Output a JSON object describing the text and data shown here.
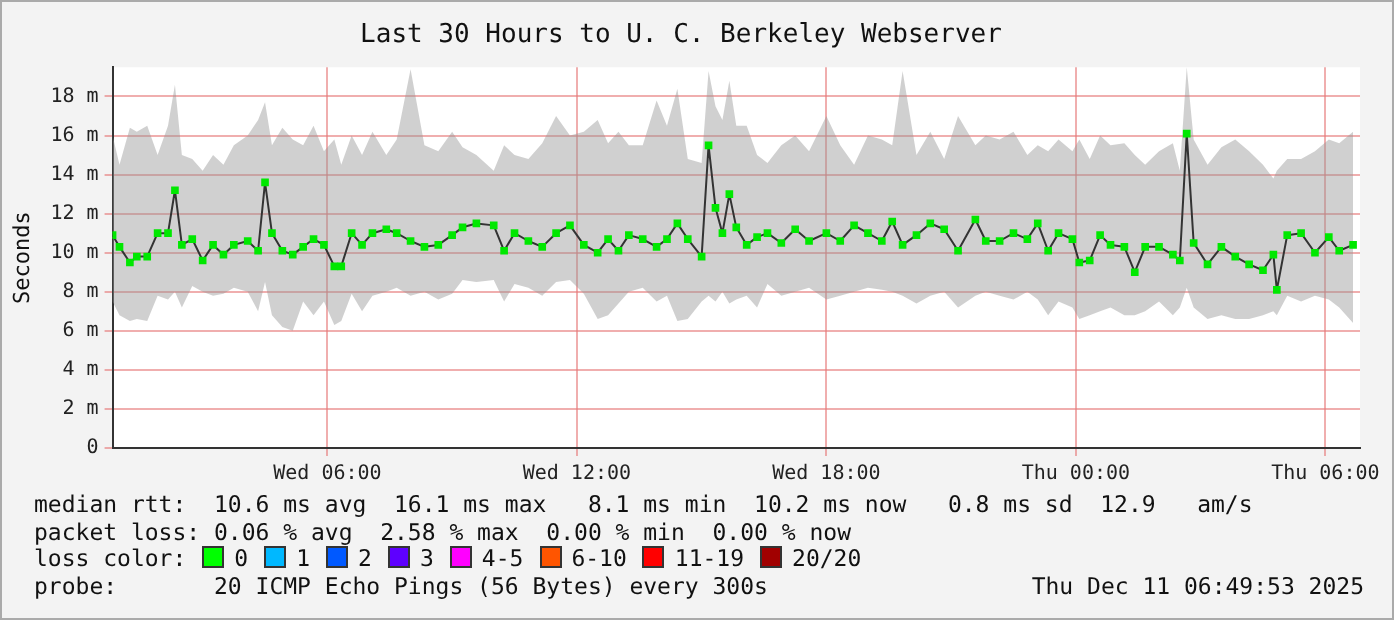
{
  "chart_data": {
    "type": "line",
    "title": "Last 30 Hours to U. C. Berkeley Webserver",
    "ylabel": "Seconds",
    "xlim": [
      "2025-12-10T00:50",
      "2025-12-11T06:50"
    ],
    "xticks": [
      {
        "value": "2025-12-10T06:00",
        "label": "Wed 06:00"
      },
      {
        "value": "2025-12-10T12:00",
        "label": "Wed 12:00"
      },
      {
        "value": "2025-12-10T18:00",
        "label": "Wed 18:00"
      },
      {
        "value": "2025-12-11T00:00",
        "label": "Thu 00:00"
      },
      {
        "value": "2025-12-11T06:00",
        "label": "Thu 06:00"
      }
    ],
    "ylim": [
      0,
      19.5
    ],
    "yticks": [
      0,
      {
        "value": 2,
        "label": "2 m"
      },
      {
        "value": 4,
        "label": "4 m"
      },
      {
        "value": 6,
        "label": "6 m"
      },
      {
        "value": 8,
        "label": "8 m"
      },
      {
        "value": 10,
        "label": "10 m"
      },
      {
        "value": 12,
        "label": "12 m"
      },
      {
        "value": 14,
        "label": "14 m"
      },
      {
        "value": 16,
        "label": "16 m"
      },
      {
        "value": 18,
        "label": "18 m"
      }
    ],
    "grid": true,
    "legend": false,
    "marker": "square",
    "line_style": "solid",
    "series": [
      {
        "color": "#00e800",
        "x": [
          "2025-12-10T00:50",
          "2025-12-10T01:00",
          "2025-12-10T01:15",
          "2025-12-10T01:25",
          "2025-12-10T01:40",
          "2025-12-10T01:55",
          "2025-12-10T02:10",
          "2025-12-10T02:20",
          "2025-12-10T02:30",
          "2025-12-10T02:45",
          "2025-12-10T03:00",
          "2025-12-10T03:15",
          "2025-12-10T03:30",
          "2025-12-10T03:45",
          "2025-12-10T04:05",
          "2025-12-10T04:20",
          "2025-12-10T04:30",
          "2025-12-10T04:40",
          "2025-12-10T04:55",
          "2025-12-10T05:10",
          "2025-12-10T05:25",
          "2025-12-10T05:40",
          "2025-12-10T05:55",
          "2025-12-10T06:10",
          "2025-12-10T06:20",
          "2025-12-10T06:35",
          "2025-12-10T06:50",
          "2025-12-10T07:05",
          "2025-12-10T07:25",
          "2025-12-10T07:40",
          "2025-12-10T08:00",
          "2025-12-10T08:20",
          "2025-12-10T08:40",
          "2025-12-10T09:00",
          "2025-12-10T09:15",
          "2025-12-10T09:35",
          "2025-12-10T10:00",
          "2025-12-10T10:15",
          "2025-12-10T10:30",
          "2025-12-10T10:50",
          "2025-12-10T11:10",
          "2025-12-10T11:30",
          "2025-12-10T11:50",
          "2025-12-10T12:10",
          "2025-12-10T12:30",
          "2025-12-10T12:45",
          "2025-12-10T13:00",
          "2025-12-10T13:15",
          "2025-12-10T13:35",
          "2025-12-10T13:55",
          "2025-12-10T14:10",
          "2025-12-10T14:25",
          "2025-12-10T14:40",
          "2025-12-10T15:00",
          "2025-12-10T15:10",
          "2025-12-10T15:20",
          "2025-12-10T15:30",
          "2025-12-10T15:40",
          "2025-12-10T15:50",
          "2025-12-10T16:05",
          "2025-12-10T16:20",
          "2025-12-10T16:35",
          "2025-12-10T16:55",
          "2025-12-10T17:15",
          "2025-12-10T17:35",
          "2025-12-10T18:00",
          "2025-12-10T18:20",
          "2025-12-10T18:40",
          "2025-12-10T19:00",
          "2025-12-10T19:20",
          "2025-12-10T19:35",
          "2025-12-10T19:50",
          "2025-12-10T20:10",
          "2025-12-10T20:30",
          "2025-12-10T20:50",
          "2025-12-10T21:10",
          "2025-12-10T21:35",
          "2025-12-10T21:50",
          "2025-12-10T22:10",
          "2025-12-10T22:30",
          "2025-12-10T22:50",
          "2025-12-10T23:05",
          "2025-12-10T23:20",
          "2025-12-10T23:35",
          "2025-12-10T23:55",
          "2025-12-11T00:05",
          "2025-12-11T00:20",
          "2025-12-11T00:35",
          "2025-12-11T00:50",
          "2025-12-11T01:10",
          "2025-12-11T01:25",
          "2025-12-11T01:40",
          "2025-12-11T02:00",
          "2025-12-11T02:20",
          "2025-12-11T02:30",
          "2025-12-11T02:40",
          "2025-12-11T02:50",
          "2025-12-11T03:10",
          "2025-12-11T03:30",
          "2025-12-11T03:50",
          "2025-12-11T04:10",
          "2025-12-11T04:30",
          "2025-12-11T04:45",
          "2025-12-11T04:50",
          "2025-12-11T05:05",
          "2025-12-11T05:25",
          "2025-12-11T05:45",
          "2025-12-11T06:05",
          "2025-12-11T06:20",
          "2025-12-11T06:40"
        ],
        "values": [
          10.9,
          10.3,
          9.5,
          9.8,
          9.8,
          11.0,
          11.0,
          13.2,
          10.4,
          10.7,
          9.6,
          10.4,
          9.9,
          10.4,
          10.6,
          10.1,
          13.6,
          11.0,
          10.1,
          9.9,
          10.3,
          10.7,
          10.4,
          9.3,
          9.3,
          11.0,
          10.4,
          11.0,
          11.2,
          11.0,
          10.6,
          10.3,
          10.4,
          10.9,
          11.3,
          11.5,
          11.4,
          10.1,
          11.0,
          10.6,
          10.3,
          11.0,
          11.4,
          10.4,
          10.0,
          10.7,
          10.1,
          10.9,
          10.7,
          10.3,
          10.7,
          11.5,
          10.7,
          9.8,
          15.5,
          12.3,
          11.0,
          13.0,
          11.3,
          10.4,
          10.8,
          11.0,
          10.5,
          11.2,
          10.6,
          11.0,
          10.6,
          11.4,
          11.0,
          10.6,
          11.6,
          10.4,
          10.9,
          11.5,
          11.2,
          10.1,
          11.7,
          10.6,
          10.6,
          11.0,
          10.7,
          11.5,
          10.1,
          11.0,
          10.7,
          9.5,
          9.6,
          10.9,
          10.4,
          10.3,
          9.0,
          10.3,
          10.3,
          9.9,
          9.6,
          16.1,
          10.5,
          9.4,
          10.3,
          9.8,
          9.4,
          9.1,
          9.9,
          8.1,
          10.9,
          11.0,
          10.0,
          10.8,
          10.1,
          10.4
        ],
        "lower": [
          7.5,
          6.8,
          6.5,
          6.6,
          6.5,
          7.8,
          7.6,
          8.0,
          7.2,
          8.3,
          8.0,
          7.8,
          7.9,
          8.2,
          8.0,
          7.0,
          8.5,
          6.8,
          6.2,
          6.0,
          7.5,
          6.8,
          7.5,
          6.3,
          6.5,
          7.9,
          7.0,
          7.8,
          8.0,
          8.2,
          7.8,
          8.0,
          7.6,
          7.9,
          8.6,
          8.5,
          8.6,
          7.5,
          8.4,
          8.2,
          7.8,
          8.5,
          8.6,
          7.9,
          6.6,
          6.8,
          7.4,
          8.0,
          8.2,
          7.5,
          7.8,
          6.5,
          6.6,
          7.5,
          7.8,
          7.5,
          8.0,
          7.4,
          7.6,
          7.8,
          7.2,
          8.4,
          7.8,
          8.0,
          8.2,
          7.6,
          7.8,
          8.0,
          8.2,
          8.1,
          8.0,
          7.8,
          7.4,
          7.8,
          8.0,
          7.2,
          7.8,
          8.0,
          7.8,
          7.6,
          8.0,
          7.6,
          6.8,
          7.5,
          7.2,
          6.6,
          6.8,
          7.0,
          7.2,
          6.8,
          6.8,
          7.0,
          7.5,
          6.8,
          7.2,
          8.2,
          7.2,
          6.6,
          6.8,
          6.6,
          6.6,
          6.8,
          7.0,
          6.8,
          7.8,
          7.5,
          7.8,
          7.6,
          7.2,
          6.4
        ],
        "upper": [
          16.0,
          14.5,
          16.4,
          16.2,
          16.5,
          15.0,
          16.5,
          18.6,
          15.0,
          14.8,
          14.2,
          15.0,
          14.5,
          15.5,
          16.0,
          16.8,
          17.7,
          15.5,
          16.4,
          15.8,
          15.5,
          16.5,
          15.2,
          15.8,
          14.5,
          16.0,
          15.0,
          16.2,
          15.0,
          15.8,
          19.4,
          15.5,
          15.2,
          16.2,
          15.4,
          15.0,
          14.2,
          15.5,
          15.0,
          14.8,
          15.6,
          17.0,
          16.0,
          16.2,
          16.8,
          15.6,
          16.2,
          15.5,
          15.5,
          17.8,
          16.5,
          18.4,
          14.8,
          14.6,
          19.3,
          17.5,
          16.8,
          18.8,
          16.5,
          16.5,
          15.0,
          14.6,
          15.5,
          16.0,
          15.2,
          17.0,
          15.5,
          14.5,
          16.0,
          15.8,
          15.5,
          19.3,
          15.0,
          16.2,
          14.8,
          17.0,
          15.5,
          16.0,
          15.8,
          16.2,
          15.0,
          15.5,
          15.2,
          15.8,
          15.2,
          15.8,
          14.8,
          16.0,
          15.5,
          15.6,
          15.0,
          14.5,
          15.2,
          15.6,
          14.2,
          19.5,
          15.8,
          14.5,
          15.4,
          15.8,
          15.2,
          14.5,
          13.8,
          14.2,
          14.8,
          14.8,
          15.2,
          15.8,
          15.6,
          16.2
        ]
      }
    ],
    "annotations": [
      "median rtt:  10.6 ms avg  16.1 ms max   8.1 ms min  10.2 ms now   0.8 ms sd  12.9   am/s",
      "packet loss: 0.06 % avg  2.58 % max  0.00 % min  0.00 % now",
      "loss color:",
      "0",
      "1",
      "2",
      "3",
      "4-5",
      "6-10",
      "11-19",
      "20/20",
      "probe:       20 ICMP Echo Pings (56 Bytes) every 300s",
      "Thu Dec 11 06:49:53 2025"
    ]
  }
}
